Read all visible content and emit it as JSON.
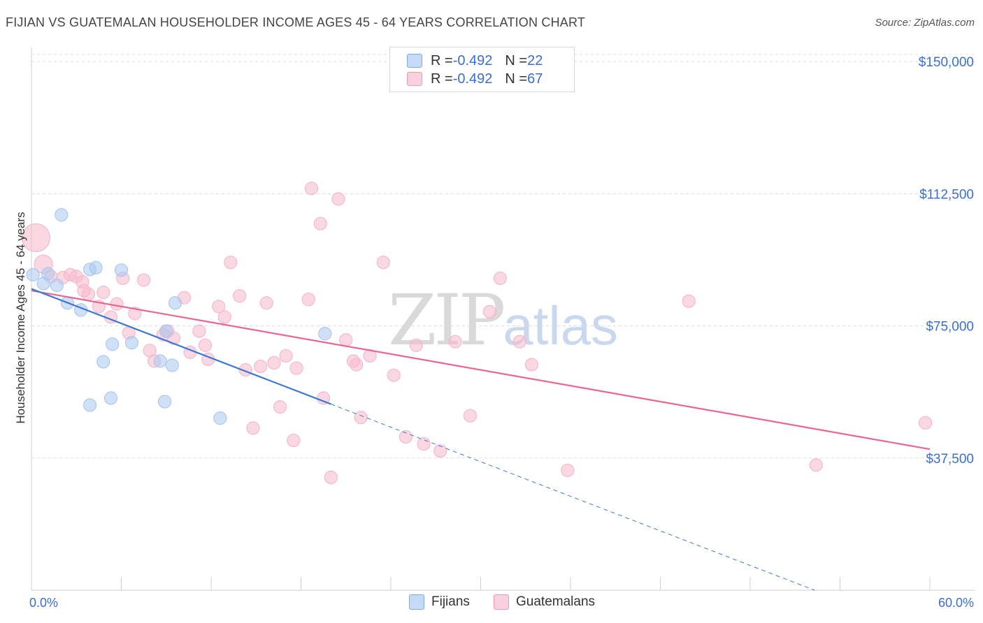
{
  "title": "FIJIAN VS GUATEMALAN HOUSEHOLDER INCOME AGES 45 - 64 YEARS CORRELATION CHART",
  "source": "Source: ZipAtlas.com",
  "watermark": {
    "zip": "ZIP",
    "atlas": "atlas"
  },
  "legend": {
    "rows": [
      {
        "r_label": "R = ",
        "r_value": "-0.492",
        "n_label": "N = ",
        "n_value": "22",
        "color": "#a9c8f0"
      },
      {
        "r_label": "R = ",
        "r_value": "-0.492",
        "n_label": "N = ",
        "n_value": "67",
        "color": "#f5b8cb"
      }
    ]
  },
  "bottom_legend": [
    {
      "label": "Fijians",
      "color": "#a9c8f0"
    },
    {
      "label": "Guatemalans",
      "color": "#f5b8cb"
    }
  ],
  "chart_data": {
    "type": "scatter",
    "title": "FIJIAN VS GUATEMALAN HOUSEHOLDER INCOME AGES 45 - 64 YEARS CORRELATION CHART",
    "xlabel": "",
    "ylabel": "Householder Income Ages 45 - 64 years",
    "xlim": [
      0,
      60
    ],
    "ylim": [
      0,
      152000
    ],
    "x_tick_labels": [
      "0.0%",
      "60.0%"
    ],
    "y_ticks": [
      37500,
      75000,
      112500,
      150000
    ],
    "y_tick_labels": [
      "$37,500",
      "$75,000",
      "$112,500",
      "$150,000"
    ],
    "grid": true,
    "legend_position": "top-center",
    "series": [
      {
        "name": "Fijians",
        "color": "#3b78d4",
        "fill": "#a9c8f0",
        "points": [
          [
            0.1,
            89500
          ],
          [
            0.8,
            87000
          ],
          [
            1.1,
            89800
          ],
          [
            2.0,
            106500
          ],
          [
            1.7,
            86500
          ],
          [
            2.4,
            81500
          ],
          [
            3.3,
            79500
          ],
          [
            4.3,
            91500
          ],
          [
            3.9,
            91000
          ],
          [
            6.0,
            90800
          ],
          [
            4.8,
            64800
          ],
          [
            5.4,
            69800
          ],
          [
            6.7,
            70200
          ],
          [
            9.0,
            73500
          ],
          [
            9.6,
            81500
          ],
          [
            8.6,
            65000
          ],
          [
            9.4,
            63800
          ],
          [
            3.9,
            52500
          ],
          [
            5.3,
            54500
          ],
          [
            8.9,
            53500
          ],
          [
            12.6,
            48800
          ],
          [
            19.6,
            72800
          ]
        ],
        "trend": {
          "x": [
            0,
            20
          ],
          "y": [
            85500,
            52800
          ]
        },
        "trend_extension": {
          "x": [
            20,
            60
          ],
          "y": [
            52800,
            -12600
          ]
        }
      },
      {
        "name": "Guatemalans",
        "color": "#e8668f",
        "fill": "#f5b8cb",
        "points": [
          [
            0.3,
            100000
          ],
          [
            0.8,
            92500
          ],
          [
            1.3,
            89000
          ],
          [
            2.1,
            88700
          ],
          [
            2.6,
            89500
          ],
          [
            3.0,
            89000
          ],
          [
            3.4,
            87500
          ],
          [
            3.5,
            85000
          ],
          [
            3.8,
            84000
          ],
          [
            4.5,
            80500
          ],
          [
            4.8,
            84500
          ],
          [
            5.3,
            77500
          ],
          [
            5.7,
            81200
          ],
          [
            6.1,
            88500
          ],
          [
            6.5,
            73000
          ],
          [
            6.9,
            78500
          ],
          [
            7.5,
            88000
          ],
          [
            7.9,
            68000
          ],
          [
            8.2,
            65000
          ],
          [
            8.8,
            72500
          ],
          [
            9.1,
            73500
          ],
          [
            9.5,
            71500
          ],
          [
            10.2,
            83000
          ],
          [
            10.6,
            67500
          ],
          [
            11.2,
            73500
          ],
          [
            11.6,
            69500
          ],
          [
            11.8,
            65500
          ],
          [
            12.5,
            80500
          ],
          [
            12.9,
            77500
          ],
          [
            13.3,
            93000
          ],
          [
            13.9,
            83500
          ],
          [
            14.3,
            62500
          ],
          [
            14.8,
            46000
          ],
          [
            15.3,
            63500
          ],
          [
            15.7,
            81500
          ],
          [
            16.2,
            64500
          ],
          [
            16.6,
            52000
          ],
          [
            17.0,
            66500
          ],
          [
            17.5,
            42500
          ],
          [
            17.7,
            63000
          ],
          [
            18.5,
            82500
          ],
          [
            18.7,
            114000
          ],
          [
            19.3,
            104000
          ],
          [
            19.5,
            54500
          ],
          [
            20.0,
            32000
          ],
          [
            20.5,
            111000
          ],
          [
            21.0,
            71000
          ],
          [
            21.5,
            65000
          ],
          [
            21.7,
            64000
          ],
          [
            22.0,
            49000
          ],
          [
            22.6,
            66500
          ],
          [
            23.5,
            93000
          ],
          [
            24.2,
            61000
          ],
          [
            25.0,
            43500
          ],
          [
            25.7,
            69500
          ],
          [
            26.2,
            41500
          ],
          [
            27.3,
            39500
          ],
          [
            28.3,
            70500
          ],
          [
            29.3,
            49500
          ],
          [
            30.6,
            79000
          ],
          [
            31.3,
            88500
          ],
          [
            32.6,
            70500
          ],
          [
            33.4,
            64000
          ],
          [
            35.8,
            34000
          ],
          [
            43.9,
            82000
          ],
          [
            52.4,
            35500
          ],
          [
            59.7,
            47500
          ]
        ],
        "trend": {
          "x": [
            0,
            60
          ],
          "y": [
            85000,
            40000
          ]
        }
      }
    ]
  }
}
